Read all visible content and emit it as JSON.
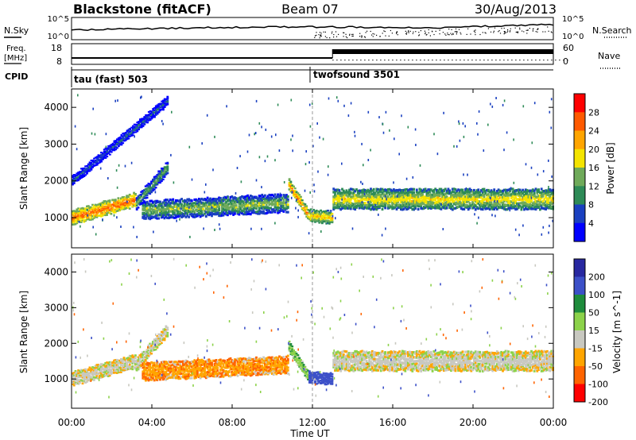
{
  "header": {
    "station": "Blackstone (fitACF)",
    "beam": "Beam 07",
    "date": "30/Aug/2013"
  },
  "noise_panel": {
    "left_label": "N.Sky",
    "left_ticks": [
      "10^5",
      "10^0"
    ],
    "right_label": "N.Search",
    "right_ticks": [
      "10^5",
      "10^0"
    ],
    "right_legend_style": "dotted"
  },
  "freq_panel": {
    "left_label_line1": "Freq.",
    "left_label_line2": "[MHz]",
    "left_ticks": [
      "18",
      "8"
    ],
    "right_label": "Nave",
    "right_ticks": [
      "60",
      "0"
    ],
    "right_legend_style": "dotted"
  },
  "cpid": {
    "label": "CPID",
    "segments": [
      {
        "name": "tau (fast) 503",
        "start_hour": 0
      },
      {
        "name": "twofsound 3501",
        "start_hour": 12.0
      }
    ]
  },
  "power_panel": {
    "ylabel": "Slant Range [km]",
    "yticks": [
      "1000",
      "2000",
      "3000",
      "4000"
    ],
    "colorbar_label": "Power [dB]",
    "colorbar_ticks": [
      "4",
      "8",
      "12",
      "16",
      "20",
      "24",
      "28"
    ],
    "colors": [
      "#0000ff",
      "#1a40c0",
      "#2e8b57",
      "#6faa5a",
      "#f4e400",
      "#ffa500",
      "#ff5a00",
      "#ff0000"
    ]
  },
  "velocity_panel": {
    "ylabel": "Slant Range [km]",
    "yticks": [
      "1000",
      "2000",
      "3000",
      "4000"
    ],
    "colorbar_label": "Velocity [m s^-1]",
    "colorbar_ticks": [
      "200",
      "100",
      "50",
      "15",
      "-15",
      "-50",
      "-100",
      "-200"
    ],
    "colors": [
      "#2828a0",
      "#3c50c8",
      "#1e8c3c",
      "#8cd24a",
      "#c8c8c0",
      "#ffa500",
      "#ff6400",
      "#ff0000"
    ]
  },
  "x_axis": {
    "ticks": [
      "00:00",
      "04:00",
      "08:00",
      "12:00",
      "16:00",
      "20:00",
      "00:00"
    ],
    "label": "Time UT"
  },
  "chart_data": [
    {
      "type": "heatmap",
      "name": "power",
      "x_range_hours": [
        0,
        24
      ],
      "y_range_km": [
        180,
        4500
      ],
      "value_range_db": [
        0,
        32
      ],
      "echo_bands": [
        {
          "t_start": 0.0,
          "t_end": 3.2,
          "range_center_km": [
            1000,
            1500
          ],
          "range_width_km": 350,
          "power_db": 28
        },
        {
          "t_start": 3.2,
          "t_end": 4.8,
          "range_center_km": [
            1400,
            2400
          ],
          "range_width_km": 300,
          "power_db": 14
        },
        {
          "t_start": 3.5,
          "t_end": 10.8,
          "range_center_km": [
            1200,
            1400
          ],
          "range_width_km": 450,
          "power_db": 16
        },
        {
          "t_start": 10.8,
          "t_end": 11.8,
          "range_center_km": [
            1900,
            1050
          ],
          "range_width_km": 250,
          "power_db": 26
        },
        {
          "t_start": 11.8,
          "t_end": 13.0,
          "range_center_km": [
            1050,
            1000
          ],
          "range_width_km": 300,
          "power_db": 22
        },
        {
          "t_start": 13.0,
          "t_end": 24.0,
          "range_center_km": [
            1500,
            1500
          ],
          "range_width_km": 500,
          "power_db": 20
        },
        {
          "t_start": 0.0,
          "t_end": 4.8,
          "range_center_km": [
            2000,
            4200
          ],
          "range_width_km": 220,
          "power_db": 8
        }
      ]
    },
    {
      "type": "heatmap",
      "name": "velocity",
      "x_range_hours": [
        0,
        24
      ],
      "y_range_km": [
        180,
        4500
      ],
      "value_range_ms": [
        -200,
        200
      ],
      "echo_bands": [
        {
          "t_start": 0.0,
          "t_end": 3.2,
          "range_center_km": [
            1000,
            1500
          ],
          "range_width_km": 350,
          "velocity": 0
        },
        {
          "t_start": 3.2,
          "t_end": 4.8,
          "range_center_km": [
            1400,
            2400
          ],
          "range_width_km": 300,
          "velocity": 0
        },
        {
          "t_start": 3.5,
          "t_end": 10.8,
          "range_center_km": [
            1200,
            1400
          ],
          "range_width_km": 450,
          "velocity": -40
        },
        {
          "t_start": 10.8,
          "t_end": 11.8,
          "range_center_km": [
            1900,
            1050
          ],
          "range_width_km": 250,
          "velocity": 40
        },
        {
          "t_start": 11.8,
          "t_end": 13.0,
          "range_center_km": [
            1050,
            1000
          ],
          "range_width_km": 300,
          "velocity": 150
        },
        {
          "t_start": 13.0,
          "t_end": 24.0,
          "range_center_km": [
            1500,
            1500
          ],
          "range_width_km": 500,
          "velocity": 0
        }
      ]
    }
  ]
}
